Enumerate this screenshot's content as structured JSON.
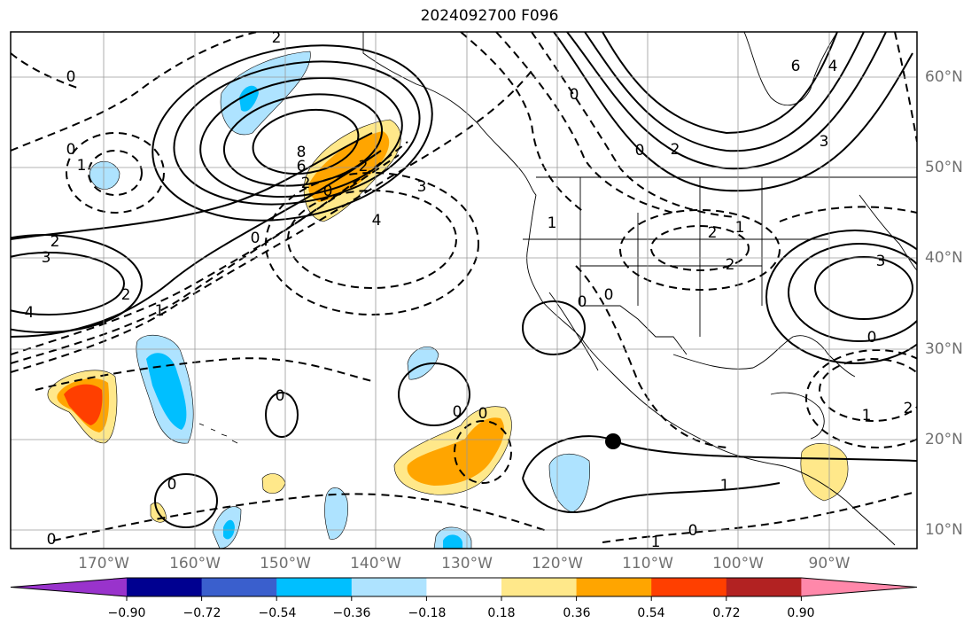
{
  "title": "2024092700 F096",
  "lat_labels": [
    "60°N",
    "50°N",
    "40°N",
    "30°N",
    "20°N",
    "10°N"
  ],
  "lon_labels": [
    "170°W",
    "160°W",
    "150°W",
    "140°W",
    "130°W",
    "120°W",
    "110°W",
    "100°W",
    "90°W"
  ],
  "colorbar": {
    "colors": [
      "#9933cc",
      "#000090",
      "#3a5fcd",
      "#00bfff",
      "#aee3ff",
      "#ffffff",
      "#ffe88a",
      "#ffa500",
      "#ff3f00",
      "#b22222",
      "#ff88aa"
    ],
    "labels": [
      "−0.90",
      "−0.72",
      "−0.54",
      "−0.36",
      "−0.18",
      "0.18",
      "0.36",
      "0.54",
      "0.72",
      "0.90"
    ]
  },
  "contour_labels": {
    "a": "2",
    "b": "0",
    "c": "8",
    "d": "6",
    "e": "2",
    "f": "0",
    "g": "2",
    "h": "3",
    "i": "4",
    "j": "2",
    "k": "1",
    "l": "0",
    "m": "3",
    "n": "4",
    "o": "0",
    "p": "1",
    "q": "2",
    "r": "0",
    "s": "0",
    "t": "1",
    "u": "2",
    "v": "2",
    "w": "0",
    "x": "0",
    "y": "0",
    "z": "0",
    "aa": "0",
    "ab": "3",
    "ac": "1",
    "ad": "0",
    "ae": "6",
    "af": "4",
    "ag": "3",
    "ah": "0",
    "ai": "2",
    "aj": "1",
    "ak": "2",
    "al": "1",
    "am": "0",
    "an": "1",
    "ao": "0"
  }
}
